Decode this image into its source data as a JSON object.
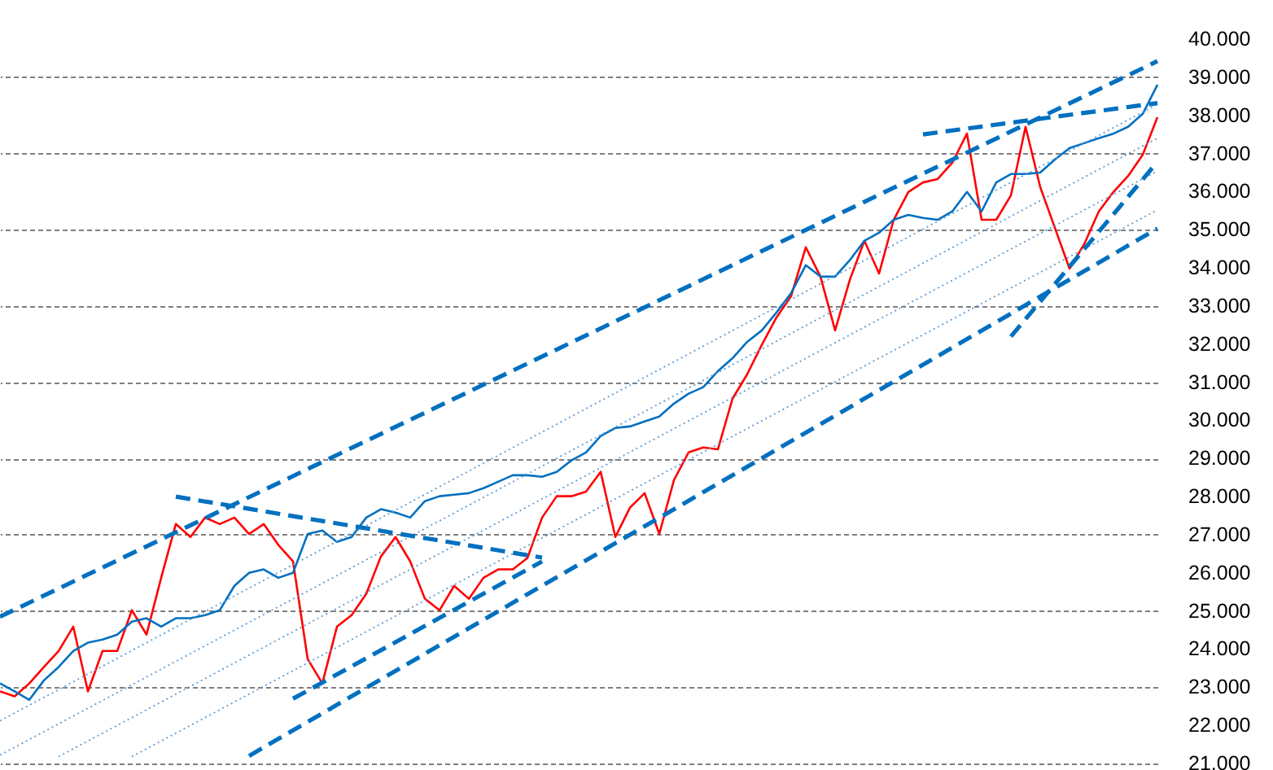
{
  "chart_data": {
    "type": "line",
    "categories": [
      null,
      null,
      null,
      null,
      null,
      null,
      null,
      null,
      null,
      null,
      null,
      null,
      null,
      null,
      null,
      null,
      null,
      null,
      null,
      null,
      null,
      null,
      null,
      null,
      null,
      null,
      null,
      null,
      null,
      null,
      null,
      null,
      null,
      null,
      null,
      null,
      null,
      null,
      null,
      null,
      null,
      null,
      null,
      null,
      null,
      null,
      null,
      null,
      null,
      null,
      null,
      null,
      null,
      null,
      null,
      null,
      null,
      null,
      null,
      null,
      null,
      null,
      null,
      null,
      null,
      null,
      null,
      null,
      null,
      null,
      null,
      null,
      null,
      null,
      null,
      null,
      null,
      null,
      null,
      null
    ],
    "ylim": [
      21000,
      40000
    ],
    "yticks": [
      {
        "value": 21000,
        "label": "21.000"
      },
      {
        "value": 22000,
        "label": "22.000"
      },
      {
        "value": 23000,
        "label": "23.000"
      },
      {
        "value": 24000,
        "label": "24.000"
      },
      {
        "value": 25000,
        "label": "25.000"
      },
      {
        "value": 26000,
        "label": "26.000"
      },
      {
        "value": 27000,
        "label": "27.000"
      },
      {
        "value": 28000,
        "label": "28.000"
      },
      {
        "value": 29000,
        "label": "29.000"
      },
      {
        "value": 30000,
        "label": "30.000"
      },
      {
        "value": 31000,
        "label": "31.000"
      },
      {
        "value": 32000,
        "label": "32.000"
      },
      {
        "value": 33000,
        "label": "33.000"
      },
      {
        "value": 34000,
        "label": "34.000"
      },
      {
        "value": 35000,
        "label": "35.000"
      },
      {
        "value": 36000,
        "label": "36.000"
      },
      {
        "value": 37000,
        "label": "37.000"
      },
      {
        "value": 38000,
        "label": "38.000"
      },
      {
        "value": 39000,
        "label": "39.000"
      },
      {
        "value": 40000,
        "label": "40.000"
      }
    ],
    "grid": "y",
    "tick_labels": "y",
    "series": [
      {
        "color": "#ff0000",
        "line_style": "solid",
        "values": [
          22890,
          22760,
          23100,
          23530,
          23950,
          24590,
          22890,
          23950,
          23950,
          25020,
          24380,
          25870,
          27280,
          26940,
          27450,
          27280,
          27450,
          27020,
          27280,
          26730,
          26300,
          23740,
          23100,
          24590,
          24890,
          25450,
          26430,
          26940,
          26300,
          25320,
          25020,
          25660,
          25320,
          25870,
          26090,
          26090,
          26390,
          27450,
          28010,
          28010,
          28130,
          28650,
          26940,
          27710,
          28090,
          27020,
          28430,
          29160,
          29290,
          29240,
          30570,
          31210,
          31980,
          32700,
          33260,
          34540,
          33770,
          32360,
          33680,
          34710,
          33850,
          35260,
          35990,
          36240,
          36330,
          36760,
          37520,
          35260,
          35260,
          35900,
          37700,
          36120,
          35050,
          33980,
          34620,
          35480,
          35990,
          36410,
          36970,
          37950
        ]
      },
      {
        "color": "#0070c0",
        "line_style": "solid",
        "values": [
          23100,
          22890,
          22670,
          23180,
          23530,
          23950,
          24170,
          24250,
          24380,
          24720,
          24810,
          24590,
          24810,
          24810,
          24890,
          25020,
          25660,
          26000,
          26090,
          25870,
          26000,
          27020,
          27110,
          26810,
          26940,
          27450,
          27670,
          27580,
          27450,
          27880,
          28010,
          28050,
          28090,
          28220,
          28390,
          28560,
          28560,
          28520,
          28650,
          28950,
          29160,
          29590,
          29800,
          29840,
          29970,
          30100,
          30440,
          30700,
          30870,
          31290,
          31630,
          32060,
          32360,
          32830,
          33340,
          34070,
          33770,
          33770,
          34200,
          34710,
          34920,
          35260,
          35390,
          35310,
          35260,
          35480,
          35990,
          35480,
          36240,
          36460,
          36460,
          36500,
          36840,
          37140,
          37270,
          37400,
          37520,
          37700,
          38040,
          38800
        ]
      },
      {
        "color": "#0070c0",
        "line_style": "dashed",
        "values": [
          24850,
          null,
          null,
          null,
          null,
          null,
          null,
          null,
          null,
          null,
          null,
          null,
          null,
          null,
          null,
          null,
          null,
          null,
          null,
          null,
          null,
          null,
          null,
          null,
          null,
          null,
          null,
          null,
          null,
          null,
          null,
          null,
          null,
          null,
          null,
          null,
          null,
          null,
          null,
          null,
          null,
          null,
          null,
          null,
          null,
          null,
          null,
          null,
          null,
          null,
          null,
          null,
          null,
          null,
          null,
          null,
          null,
          null,
          null,
          null,
          null,
          null,
          null,
          null,
          null,
          null,
          null,
          null,
          null,
          null,
          null,
          null,
          null,
          null,
          null,
          null,
          null,
          null,
          null,
          39420
        ]
      },
      {
        "color": "#0070c0",
        "line_style": "dashed",
        "values": [
          null,
          null,
          null,
          null,
          null,
          null,
          null,
          null,
          null,
          null,
          null,
          null,
          null,
          null,
          null,
          null,
          null,
          21200,
          null,
          null,
          null,
          null,
          null,
          null,
          null,
          null,
          null,
          null,
          null,
          null,
          null,
          null,
          null,
          null,
          null,
          null,
          null,
          null,
          null,
          null,
          null,
          null,
          null,
          null,
          null,
          null,
          null,
          null,
          null,
          null,
          null,
          null,
          null,
          null,
          null,
          null,
          null,
          null,
          null,
          null,
          null,
          null,
          null,
          null,
          null,
          null,
          null,
          null,
          null,
          null,
          null,
          null,
          null,
          null,
          null,
          null,
          null,
          null,
          null,
          35030
        ]
      },
      {
        "color": "#5b9bd5",
        "line_style": "dotted",
        "values": [
          22120,
          null,
          null,
          null,
          null,
          null,
          null,
          null,
          null,
          null,
          null,
          null,
          null,
          null,
          null,
          null,
          null,
          null,
          null,
          null,
          null,
          null,
          null,
          null,
          null,
          null,
          null,
          null,
          null,
          null,
          null,
          null,
          null,
          null,
          null,
          null,
          null,
          null,
          null,
          null,
          null,
          null,
          null,
          null,
          null,
          null,
          null,
          null,
          null,
          null,
          null,
          null,
          null,
          null,
          null,
          null,
          null,
          null,
          null,
          null,
          null,
          null,
          null,
          null,
          null,
          null,
          null,
          null,
          null,
          null,
          null,
          null,
          null,
          null,
          null,
          null,
          null,
          null,
          null,
          38290
        ]
      },
      {
        "color": "#5b9bd5",
        "line_style": "dotted",
        "values": [
          21220,
          null,
          null,
          null,
          null,
          null,
          null,
          null,
          null,
          null,
          null,
          null,
          null,
          null,
          null,
          null,
          null,
          null,
          null,
          null,
          null,
          null,
          null,
          null,
          null,
          null,
          null,
          null,
          null,
          null,
          null,
          null,
          null,
          null,
          null,
          null,
          null,
          null,
          null,
          null,
          null,
          null,
          null,
          null,
          null,
          null,
          null,
          null,
          null,
          null,
          null,
          null,
          null,
          null,
          null,
          null,
          null,
          null,
          null,
          null,
          null,
          null,
          null,
          null,
          null,
          null,
          null,
          null,
          null,
          null,
          null,
          null,
          null,
          null,
          null,
          null,
          null,
          null,
          null,
          37400
        ]
      },
      {
        "color": "#5b9bd5",
        "line_style": "dotted",
        "values": [
          null,
          null,
          null,
          null,
          21180,
          null,
          null,
          null,
          null,
          null,
          null,
          null,
          null,
          null,
          null,
          null,
          null,
          null,
          null,
          null,
          null,
          null,
          null,
          null,
          null,
          null,
          null,
          null,
          null,
          null,
          null,
          null,
          null,
          null,
          null,
          null,
          null,
          null,
          null,
          null,
          null,
          null,
          null,
          null,
          null,
          null,
          null,
          null,
          null,
          null,
          null,
          null,
          null,
          null,
          null,
          null,
          null,
          null,
          null,
          null,
          null,
          null,
          null,
          null,
          null,
          null,
          null,
          null,
          null,
          null,
          null,
          null,
          null,
          null,
          null,
          null,
          null,
          null,
          null,
          36540
        ]
      },
      {
        "color": "#5b9bd5",
        "line_style": "dotted",
        "values": [
          null,
          null,
          null,
          null,
          null,
          null,
          null,
          null,
          null,
          21180,
          null,
          null,
          null,
          null,
          null,
          null,
          null,
          null,
          null,
          null,
          null,
          null,
          null,
          null,
          null,
          null,
          null,
          null,
          null,
          null,
          null,
          null,
          null,
          null,
          null,
          null,
          null,
          null,
          null,
          null,
          null,
          null,
          null,
          null,
          null,
          null,
          null,
          null,
          null,
          null,
          null,
          null,
          null,
          null,
          null,
          null,
          null,
          null,
          null,
          null,
          null,
          null,
          null,
          null,
          null,
          null,
          null,
          null,
          null,
          null,
          null,
          null,
          null,
          null,
          null,
          null,
          null,
          null,
          null,
          35520
        ]
      },
      {
        "color": "#0070c0",
        "line_style": "dashed",
        "values": [
          null,
          null,
          null,
          null,
          null,
          null,
          null,
          null,
          null,
          null,
          null,
          null,
          28000,
          null,
          null,
          null,
          null,
          null,
          null,
          null,
          null,
          null,
          null,
          null,
          null,
          null,
          null,
          null,
          null,
          null,
          null,
          null,
          null,
          null,
          null,
          null,
          null,
          26400,
          null,
          null,
          null,
          null,
          null,
          null,
          null,
          null,
          null,
          null,
          null,
          null,
          null,
          null,
          null,
          null,
          null,
          null,
          null,
          null,
          null,
          null,
          null,
          null,
          null,
          null,
          null,
          null,
          null,
          null,
          null,
          null,
          null,
          null,
          null,
          null,
          null,
          null,
          null,
          null,
          null,
          null
        ]
      },
      {
        "color": "#0070c0",
        "line_style": "dashed",
        "values": [
          null,
          null,
          null,
          null,
          null,
          null,
          null,
          null,
          null,
          null,
          null,
          null,
          null,
          null,
          null,
          null,
          null,
          null,
          null,
          null,
          22700,
          null,
          null,
          null,
          null,
          null,
          null,
          null,
          null,
          null,
          null,
          null,
          null,
          null,
          null,
          null,
          null,
          26300,
          null,
          null,
          null,
          null,
          null,
          null,
          null,
          null,
          null,
          null,
          null,
          null,
          null,
          null,
          null,
          null,
          null,
          null,
          null,
          null,
          null,
          null,
          null,
          null,
          null,
          null,
          null,
          null,
          null,
          null,
          null,
          null,
          null,
          null,
          null,
          null,
          null,
          null,
          null,
          null,
          null,
          null
        ]
      },
      {
        "color": "#0070c0",
        "line_style": "dashed",
        "values": [
          null,
          null,
          null,
          null,
          null,
          null,
          null,
          null,
          null,
          null,
          null,
          null,
          null,
          null,
          null,
          null,
          null,
          null,
          null,
          null,
          null,
          null,
          null,
          null,
          null,
          null,
          null,
          null,
          null,
          null,
          null,
          null,
          null,
          null,
          null,
          null,
          null,
          null,
          null,
          null,
          null,
          null,
          null,
          null,
          null,
          null,
          null,
          null,
          null,
          null,
          null,
          null,
          null,
          null,
          null,
          null,
          null,
          null,
          null,
          null,
          null,
          null,
          null,
          37500,
          null,
          null,
          null,
          null,
          null,
          null,
          null,
          null,
          null,
          null,
          null,
          null,
          null,
          null,
          null,
          38320
        ]
      },
      {
        "color": "#0070c0",
        "line_style": "dashed",
        "values": [
          null,
          null,
          null,
          null,
          null,
          null,
          null,
          null,
          null,
          null,
          null,
          null,
          null,
          null,
          null,
          null,
          null,
          null,
          null,
          null,
          null,
          null,
          null,
          null,
          null,
          null,
          null,
          null,
          null,
          null,
          null,
          null,
          null,
          null,
          null,
          null,
          null,
          null,
          null,
          null,
          null,
          null,
          null,
          null,
          null,
          null,
          null,
          null,
          null,
          null,
          null,
          null,
          null,
          null,
          null,
          null,
          null,
          null,
          null,
          null,
          null,
          null,
          null,
          null,
          null,
          null,
          null,
          null,
          null,
          32200,
          null,
          null,
          null,
          null,
          null,
          null,
          null,
          null,
          null,
          36780
        ]
      }
    ]
  }
}
